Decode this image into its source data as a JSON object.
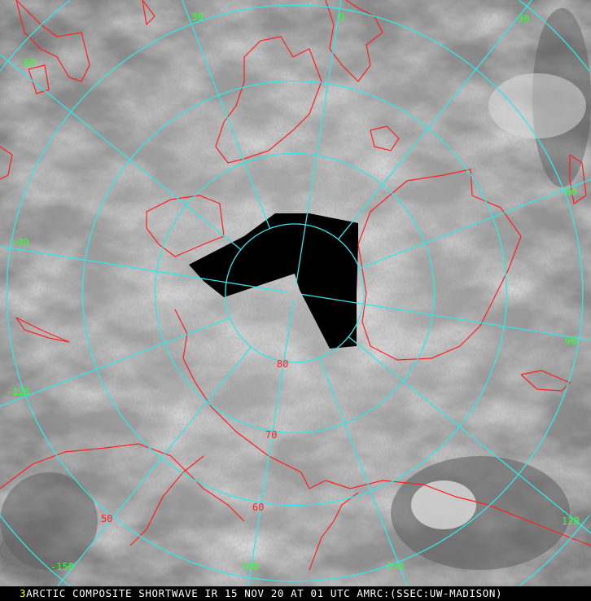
{
  "image": {
    "type": "polar stereographic satellite composite",
    "colors": {
      "grid": "#33e6e6",
      "coastline": "#ff2020",
      "longitude_labels": "#33ff33",
      "latitude_labels": "#ff2020",
      "missing_data": "#000000"
    }
  },
  "grid": {
    "longitude_labels": [
      "-60",
      "-30",
      "0",
      "30",
      "60",
      "90",
      "120",
      "150",
      "180",
      "-150",
      "-120",
      "-90"
    ],
    "latitude_labels": [
      "80",
      "70",
      "60",
      "50"
    ]
  },
  "caption": {
    "frame_number": "3",
    "text": "ARCTIC COMPOSITE SHORTWAVE IR 15 NOV 20 AT 01 UTC AMRC:(SSEC:UW-MADISON)"
  }
}
